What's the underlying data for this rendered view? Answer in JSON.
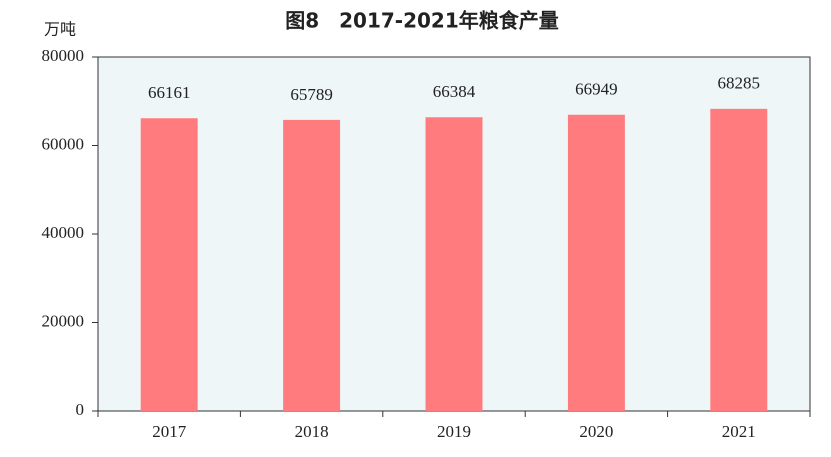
{
  "chart_data": {
    "type": "bar",
    "title": "图8　2017-2021年粮食产量",
    "y_label": "万吨",
    "categories": [
      "2017",
      "2018",
      "2019",
      "2020",
      "2021"
    ],
    "values": [
      66161,
      65789,
      66384,
      66949,
      68285
    ],
    "color": "#ff7b7d",
    "background": "#eef6f8",
    "ylim": [
      0,
      80000
    ],
    "yticks": [
      0,
      20000,
      40000,
      60000,
      80000
    ],
    "grid": false,
    "show_values": true
  }
}
